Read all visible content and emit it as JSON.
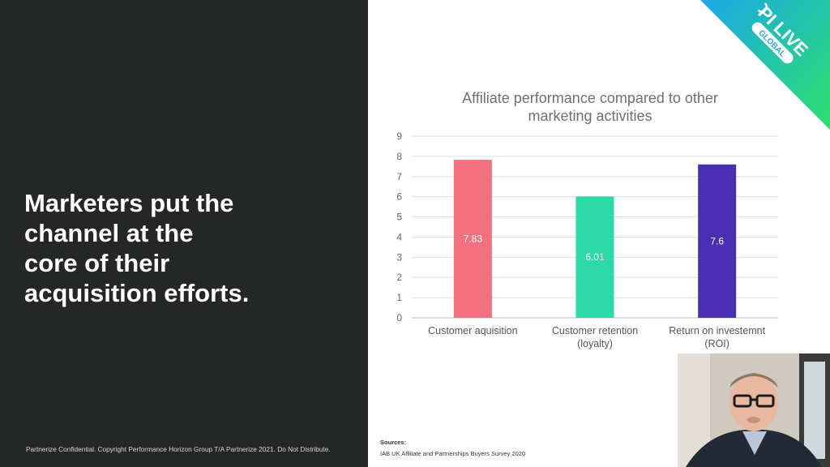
{
  "slide": {
    "headline_lines": [
      "Marketers put the",
      "channel at the",
      "core of their",
      "acquisition efforts."
    ],
    "confidential": "Partnerize Confidential. Copyright Performance Horizon Group T/A Partnerize 2021. Do Not Distribute.",
    "sources_heading": "Sources:",
    "sources_text": "IAB UK Affiliate and Partnerships Buyers Survey 2020"
  },
  "logo": {
    "text": "PI LIVE",
    "subtext": "GLOBAL"
  },
  "colors": {
    "left_bg": "#252626",
    "bar1": "#f4707e",
    "bar2": "#2dd9a4",
    "bar3": "#4a2fb5",
    "banner_start": "#1aa8e8",
    "banner_end": "#2de06a"
  },
  "chart_data": {
    "type": "bar",
    "title_lines": [
      "Affiliate performance compared to other",
      "marketing activities"
    ],
    "categories": [
      [
        "Customer aquisition"
      ],
      [
        "Customer retention",
        "(loyalty)"
      ],
      [
        "Return on investemnt",
        "(ROI)"
      ]
    ],
    "values": [
      7.83,
      6.01,
      7.6
    ],
    "value_labels": [
      "7.83",
      "6.01",
      "7.6"
    ],
    "ylim": [
      0,
      9
    ],
    "yticks": [
      "0",
      "1",
      "2",
      "3",
      "4",
      "5",
      "6",
      "7",
      "8",
      "9"
    ],
    "grid": true,
    "legend": "none"
  }
}
